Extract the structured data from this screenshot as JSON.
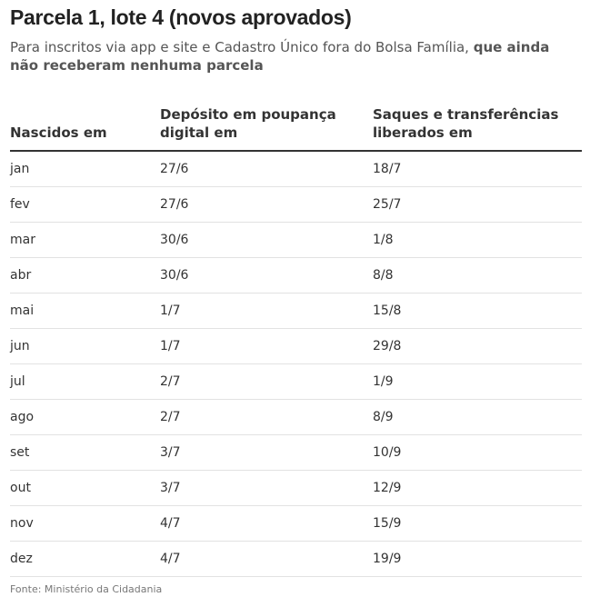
{
  "title": "Parcela 1, lote 4 (novos aprovados)",
  "subtitle": {
    "normal": "Para inscritos via app e site e Cadastro Único fora do Bolsa Família, ",
    "bold": "que ainda não receberam nenhuma parcela"
  },
  "table": {
    "headers": [
      "Nascidos em",
      "Depósito em poupança digital em",
      "Saques e transferências liberados em"
    ],
    "rows": [
      [
        "jan",
        "27/6",
        "18/7"
      ],
      [
        "fev",
        "27/6",
        "25/7"
      ],
      [
        "mar",
        "30/6",
        "1/8"
      ],
      [
        "abr",
        "30/6",
        "8/8"
      ],
      [
        "mai",
        "1/7",
        "15/8"
      ],
      [
        "jun",
        "1/7",
        "29/8"
      ],
      [
        "jul",
        "2/7",
        "1/9"
      ],
      [
        "ago",
        "2/7",
        "8/9"
      ],
      [
        "set",
        "3/7",
        "10/9"
      ],
      [
        "out",
        "3/7",
        "12/9"
      ],
      [
        "nov",
        "4/7",
        "15/9"
      ],
      [
        "dez",
        "4/7",
        "19/9"
      ]
    ]
  },
  "source": "Fonte: Ministério da Cidadania"
}
